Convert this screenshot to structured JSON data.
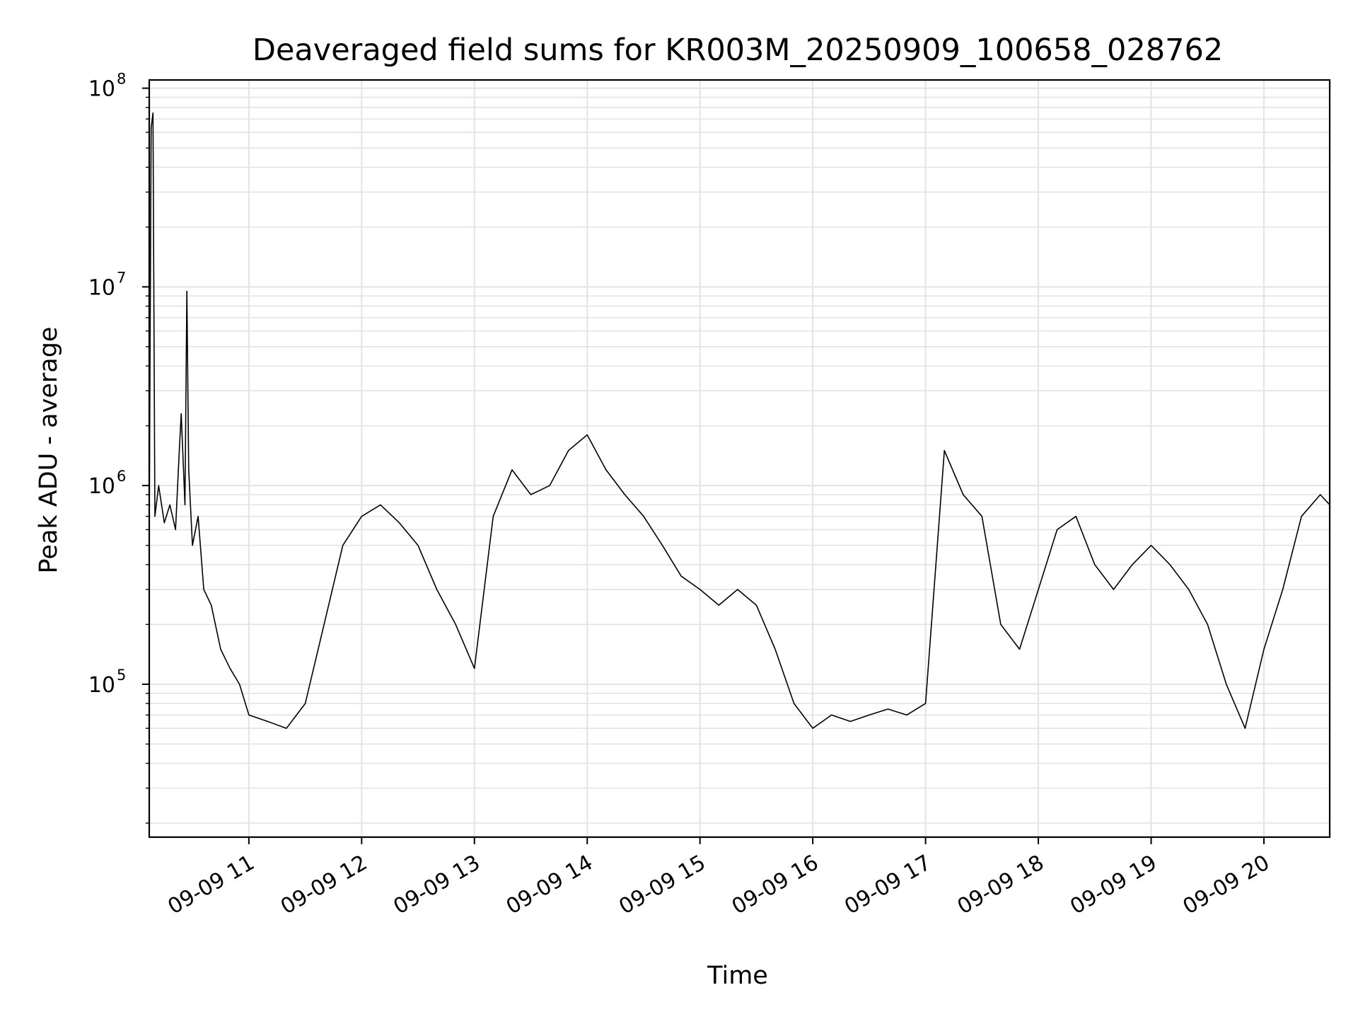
{
  "chart_data": {
    "type": "line",
    "title": "Deaveraged field sums for KR003M_20250909_100658_028762",
    "xlabel": "Time",
    "ylabel": "Peak ADU - average",
    "x_axis": {
      "kind": "datetime",
      "date": "2025-09-09",
      "range": [
        "2025-09-09 10:07",
        "2025-09-09 20:35"
      ],
      "tick_labels": [
        "09-09 11",
        "09-09 12",
        "09-09 13",
        "09-09 14",
        "09-09 15",
        "09-09 16",
        "09-09 17",
        "09-09 18",
        "09-09 19",
        "09-09 20"
      ]
    },
    "y_axis": {
      "scale": "log",
      "range": [
        17000,
        110000000
      ],
      "tick_labels": [
        {
          "base": "10",
          "exp": "5"
        },
        {
          "base": "10",
          "exp": "6"
        },
        {
          "base": "10",
          "exp": "7"
        },
        {
          "base": "10",
          "exp": "8"
        }
      ]
    },
    "grid": true,
    "series": [
      {
        "color": "#000000",
        "points": [
          [
            "2025-09-09 10:07",
            600000
          ],
          [
            "2025-09-09 10:08",
            63000000
          ],
          [
            "2025-09-09 10:09",
            75000000
          ],
          [
            "2025-09-09 10:10",
            700000
          ],
          [
            "2025-09-09 10:12",
            1000000
          ],
          [
            "2025-09-09 10:15",
            650000
          ],
          [
            "2025-09-09 10:18",
            800000
          ],
          [
            "2025-09-09 10:21",
            600000
          ],
          [
            "2025-09-09 10:23",
            1500000
          ],
          [
            "2025-09-09 10:24",
            2300000
          ],
          [
            "2025-09-09 10:26",
            800000
          ],
          [
            "2025-09-09 10:27",
            9500000
          ],
          [
            "2025-09-09 10:28",
            1200000
          ],
          [
            "2025-09-09 10:30",
            500000
          ],
          [
            "2025-09-09 10:33",
            700000
          ],
          [
            "2025-09-09 10:36",
            300000
          ],
          [
            "2025-09-09 10:40",
            250000
          ],
          [
            "2025-09-09 10:45",
            150000
          ],
          [
            "2025-09-09 10:50",
            120000
          ],
          [
            "2025-09-09 10:55",
            100000
          ],
          [
            "2025-09-09 11:00",
            70000
          ],
          [
            "2025-09-09 11:10",
            65000
          ],
          [
            "2025-09-09 11:20",
            60000
          ],
          [
            "2025-09-09 11:30",
            80000
          ],
          [
            "2025-09-09 11:40",
            200000
          ],
          [
            "2025-09-09 11:50",
            500000
          ],
          [
            "2025-09-09 12:00",
            700000
          ],
          [
            "2025-09-09 12:10",
            800000
          ],
          [
            "2025-09-09 12:20",
            650000
          ],
          [
            "2025-09-09 12:30",
            500000
          ],
          [
            "2025-09-09 12:40",
            300000
          ],
          [
            "2025-09-09 12:50",
            200000
          ],
          [
            "2025-09-09 13:00",
            120000
          ],
          [
            "2025-09-09 13:10",
            700000
          ],
          [
            "2025-09-09 13:20",
            1200000
          ],
          [
            "2025-09-09 13:30",
            900000
          ],
          [
            "2025-09-09 13:40",
            1000000
          ],
          [
            "2025-09-09 13:50",
            1500000
          ],
          [
            "2025-09-09 14:00",
            1800000
          ],
          [
            "2025-09-09 14:10",
            1200000
          ],
          [
            "2025-09-09 14:20",
            900000
          ],
          [
            "2025-09-09 14:30",
            700000
          ],
          [
            "2025-09-09 14:40",
            500000
          ],
          [
            "2025-09-09 14:50",
            350000
          ],
          [
            "2025-09-09 15:00",
            300000
          ],
          [
            "2025-09-09 15:10",
            250000
          ],
          [
            "2025-09-09 15:20",
            300000
          ],
          [
            "2025-09-09 15:30",
            250000
          ],
          [
            "2025-09-09 15:40",
            150000
          ],
          [
            "2025-09-09 15:50",
            80000
          ],
          [
            "2025-09-09 16:00",
            60000
          ],
          [
            "2025-09-09 16:10",
            70000
          ],
          [
            "2025-09-09 16:20",
            65000
          ],
          [
            "2025-09-09 16:30",
            70000
          ],
          [
            "2025-09-09 16:40",
            75000
          ],
          [
            "2025-09-09 16:50",
            70000
          ],
          [
            "2025-09-09 17:00",
            80000
          ],
          [
            "2025-09-09 17:10",
            1500000
          ],
          [
            "2025-09-09 17:20",
            900000
          ],
          [
            "2025-09-09 17:30",
            700000
          ],
          [
            "2025-09-09 17:40",
            200000
          ],
          [
            "2025-09-09 17:50",
            150000
          ],
          [
            "2025-09-09 18:00",
            300000
          ],
          [
            "2025-09-09 18:10",
            600000
          ],
          [
            "2025-09-09 18:20",
            700000
          ],
          [
            "2025-09-09 18:30",
            400000
          ],
          [
            "2025-09-09 18:40",
            300000
          ],
          [
            "2025-09-09 18:50",
            400000
          ],
          [
            "2025-09-09 19:00",
            500000
          ],
          [
            "2025-09-09 19:10",
            400000
          ],
          [
            "2025-09-09 19:20",
            300000
          ],
          [
            "2025-09-09 19:30",
            200000
          ],
          [
            "2025-09-09 19:40",
            100000
          ],
          [
            "2025-09-09 19:50",
            60000
          ],
          [
            "2025-09-09 20:00",
            150000
          ],
          [
            "2025-09-09 20:10",
            300000
          ],
          [
            "2025-09-09 20:20",
            700000
          ],
          [
            "2025-09-09 20:30",
            900000
          ],
          [
            "2025-09-09 20:35",
            800000
          ]
        ]
      }
    ]
  }
}
